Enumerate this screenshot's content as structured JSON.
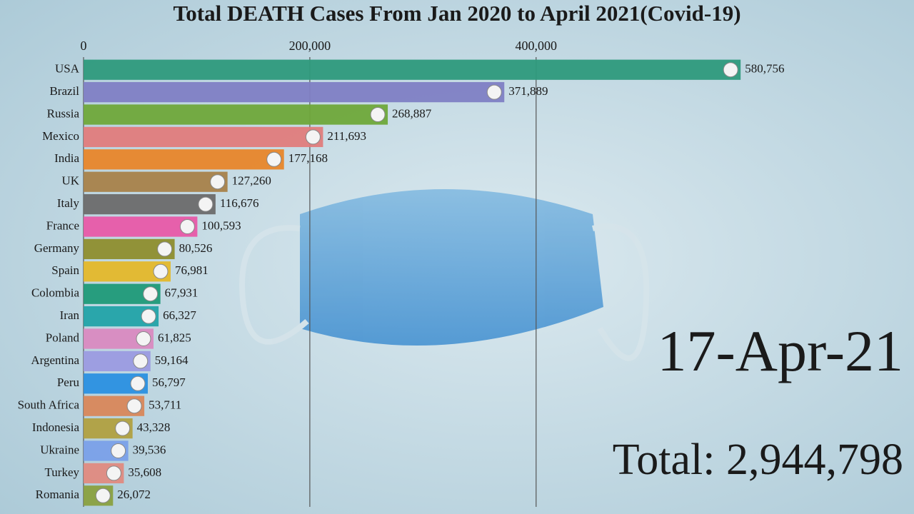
{
  "chart_data": {
    "type": "bar",
    "orientation": "horizontal",
    "title": "Total DEATH Cases From Jan 2020 to April 2021(Covid-19)",
    "categories": [
      "USA",
      "Brazil",
      "Russia",
      "Mexico",
      "India",
      "UK",
      "Italy",
      "France",
      "Germany",
      "Spain",
      "Colombia",
      "Iran",
      "Poland",
      "Argentina",
      "Peru",
      "South Africa",
      "Indonesia",
      "Ukraine",
      "Turkey",
      "Romania"
    ],
    "values": [
      580756,
      371889,
      268887,
      211693,
      177168,
      127260,
      116676,
      100593,
      80526,
      76981,
      67931,
      66327,
      61825,
      59164,
      56797,
      53711,
      43328,
      39536,
      35608,
      26072
    ],
    "value_labels": [
      "580,756",
      "371,889",
      "268,887",
      "211,693",
      "177,168",
      "127,260",
      "116,676",
      "100,593",
      "80,526",
      "76,981",
      "67,931",
      "66,327",
      "61,825",
      "59,164",
      "56,797",
      "53,711",
      "43,328",
      "39,536",
      "35,608",
      "26,072"
    ],
    "colors": [
      "#2e9a7c",
      "#7f7fc4",
      "#6fa83a",
      "#e07c7c",
      "#e8862a",
      "#a8824a",
      "#6b6b6b",
      "#e85aa8",
      "#8e8e2e",
      "#e4b82a",
      "#1f9a78",
      "#22a3a8",
      "#d98ac0",
      "#9b9be0",
      "#2a90e0",
      "#d8875a",
      "#b0a040",
      "#7aa0e8",
      "#e08a80",
      "#8aa040"
    ],
    "xlim": [
      0,
      734000
    ],
    "xticks": [
      0,
      {
        "value": 200000,
        "label": "200,000"
      },
      {
        "value": 400000,
        "label": "400,000"
      }
    ],
    "grid": true,
    "date": "17-Apr-21",
    "total": "Total: 2,944,798"
  }
}
